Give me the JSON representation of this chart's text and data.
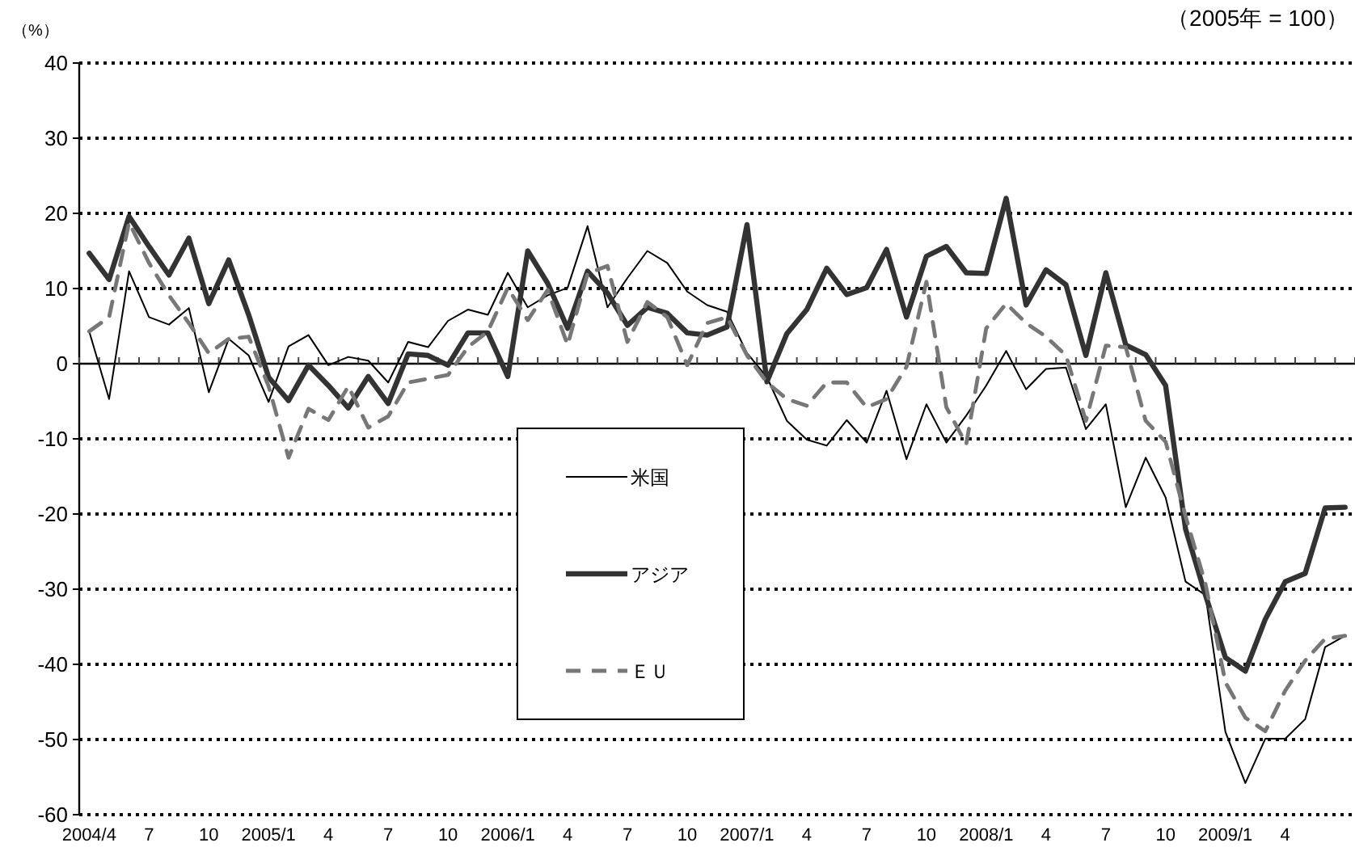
{
  "chart_data": {
    "type": "line",
    "subtitle": "（2005年 = 100）",
    "ylabel": "（%）",
    "categories": [
      "2004/4",
      null,
      null,
      "7",
      null,
      null,
      "10",
      null,
      null,
      "2005/1",
      null,
      null,
      "4",
      null,
      null,
      "7",
      null,
      null,
      "10",
      null,
      null,
      "2006/1",
      null,
      null,
      "4",
      null,
      null,
      "7",
      null,
      null,
      "10",
      null,
      null,
      "2007/1",
      null,
      null,
      "4",
      null,
      null,
      "7",
      null,
      null,
      "10",
      null,
      null,
      "2008/1",
      null,
      null,
      "4",
      null,
      null,
      "7",
      null,
      null,
      "10",
      null,
      null,
      "2009/1",
      null,
      null,
      "4",
      null,
      null,
      null
    ],
    "series": [
      {
        "name": "米国",
        "color": "#000000",
        "line_style": "solid",
        "values": [
          4.3,
          -4.7,
          12.3,
          6.2,
          5.2,
          7.4,
          -3.8,
          3.3,
          1.1,
          -5.1,
          2.3,
          3.8,
          -0.2,
          0.9,
          0.4,
          -2.5,
          2.9,
          2.2,
          5.7,
          7.2,
          6.5,
          12.1,
          7.5,
          9.1,
          10.1,
          18.3,
          7.5,
          11.4,
          15,
          13.4,
          9.6,
          7.8,
          6.9,
          1.4,
          -1.8,
          -7.6,
          -10.1,
          -10.9,
          -7.5,
          -10.5,
          -3.6,
          -12.7,
          -5.4,
          -10.5,
          -6.9,
          -2.9,
          1.7,
          -3.4,
          -0.7,
          -0.5,
          -8.7,
          -5.4,
          -19.1,
          -12.5,
          -17.8,
          -29,
          -30.8,
          -49,
          -55.8,
          -49.9,
          -49.9,
          -47.3,
          -37.7,
          -36.2
        ]
      },
      {
        "name": "アジア",
        "color": "#333333",
        "line_style": "solid",
        "values": [
          14.7,
          11.2,
          19.6,
          15.6,
          11.8,
          16.7,
          8,
          13.8,
          6.5,
          -1.8,
          -4.9,
          -0.2,
          -2.9,
          -5.9,
          -1.7,
          -5.3,
          1.3,
          1.1,
          -0.2,
          4.1,
          4.1,
          -1.7,
          15,
          10.7,
          4.7,
          12.3,
          9.4,
          5.1,
          7.5,
          6.7,
          4.1,
          3.8,
          4.9,
          18.5,
          -2.4,
          4,
          7.2,
          12.7,
          9.2,
          10.1,
          15.2,
          6.2,
          14.3,
          15.6,
          12.1,
          12,
          22,
          7.8,
          12.5,
          10.5,
          1.1,
          12.1,
          2.5,
          1.2,
          -2.9,
          -22,
          -30.8,
          -39.1,
          -40.9,
          -34,
          -29,
          -27.9,
          -19.2,
          -19.1
        ]
      },
      {
        "name": "ＥＵ",
        "color": "#777777",
        "line_style": "dashed",
        "values": [
          4.3,
          6.2,
          18.8,
          13.4,
          9.1,
          5.4,
          1.4,
          3.3,
          3.6,
          -3,
          -12.5,
          -6,
          -7.5,
          -3,
          -8.5,
          -7,
          -2.5,
          -2,
          -1.5,
          2.2,
          4.3,
          10.1,
          5.8,
          9.8,
          2.5,
          12,
          13,
          2.9,
          8.2,
          6.2,
          -0.2,
          5.4,
          6.2,
          1.1,
          -2.5,
          -4.7,
          -5.6,
          -2.5,
          -2.5,
          -5.8,
          -4.7,
          -0.4,
          10.9,
          -5.8,
          -10.7,
          4.7,
          8,
          5.4,
          3.6,
          1.1,
          -7.6,
          2.4,
          2.2,
          -7.6,
          -10.4,
          -20.3,
          -29.3,
          -42.4,
          -47.1,
          -48.9,
          -43.5,
          -39.5,
          -36.6,
          -36.2
        ]
      }
    ],
    "ylim": [
      -60,
      40
    ],
    "yticks": [
      -60,
      -50,
      -40,
      -30,
      -20,
      -10,
      0,
      10,
      20,
      30,
      40
    ],
    "grid": "y",
    "legend": "center",
    "marker": "none"
  }
}
